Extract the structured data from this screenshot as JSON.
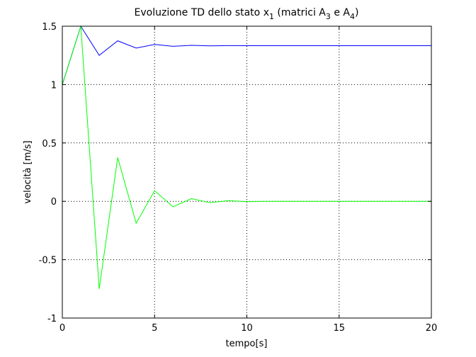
{
  "chart_data": {
    "type": "line",
    "title": {
      "main": "Evoluzione TD dello stato x",
      "state_sub": "1",
      "mid": " (matrici A",
      "a_sub1": "3",
      "conj": " e A",
      "a_sub2": "4",
      "close": ")"
    },
    "xlabel": "tempo[s]",
    "ylabel": "velocità [m/s]",
    "xlim": [
      0,
      20
    ],
    "ylim": [
      -1,
      1.5
    ],
    "xticks": [
      0,
      5,
      10,
      15,
      20
    ],
    "yticks": [
      -1,
      -0.5,
      0,
      0.5,
      1,
      1.5
    ],
    "xtick_labels": [
      "0",
      "5",
      "10",
      "15",
      "20"
    ],
    "ytick_labels": [
      "-1",
      "-0.5",
      "0",
      "0.5",
      "1",
      "1.5"
    ],
    "grid": true,
    "x": [
      0,
      1,
      2,
      3,
      4,
      5,
      6,
      7,
      8,
      9,
      10,
      11,
      12,
      13,
      14,
      15,
      16,
      17,
      18,
      19,
      20
    ],
    "series": [
      {
        "color": "#0000ff",
        "values": [
          1.0,
          1.5,
          1.25,
          1.375,
          1.3125,
          1.344,
          1.328,
          1.336,
          1.332,
          1.334,
          1.333,
          1.333,
          1.333,
          1.333,
          1.333,
          1.333,
          1.333,
          1.333,
          1.333,
          1.333,
          1.333
        ]
      },
      {
        "color": "#00ff00",
        "values": [
          1.0,
          1.5,
          -0.75,
          0.375,
          -0.1875,
          0.09,
          -0.047,
          0.023,
          -0.012,
          0.006,
          -0.003,
          0.0,
          0.0,
          0.0,
          0.0,
          0.0,
          0.0,
          0.0,
          0.0,
          0.0,
          0.0
        ]
      }
    ]
  }
}
